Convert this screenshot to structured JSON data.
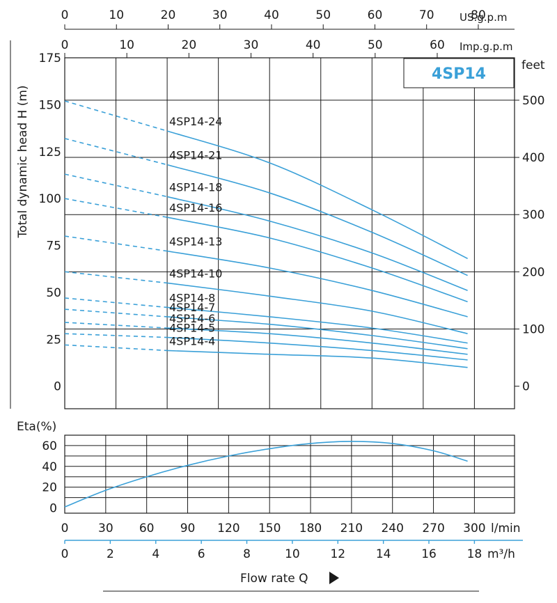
{
  "chart_data": [
    {
      "type": "line",
      "title": "4SP14",
      "ylabel": "Total dynamic head H (m)",
      "ylabel_right": "feet",
      "y_ticks": [
        0,
        25,
        50,
        75,
        100,
        125,
        150,
        175
      ],
      "y_right_ticks": [
        0,
        100,
        200,
        300,
        400,
        500
      ],
      "ylim": [
        -12,
        175
      ],
      "xlim_lmin": [
        0,
        320
      ],
      "top_axis_us": {
        "unit": "US.g.p.m",
        "ticks": [
          0,
          10,
          20,
          30,
          40,
          50,
          60,
          70,
          80
        ]
      },
      "top_axis_imp": {
        "unit": "Imp.g.p.m",
        "ticks": [
          0,
          10,
          20,
          30,
          40,
          50,
          60
        ]
      },
      "x_unit": "l/min",
      "solid_from_x": 75,
      "series": [
        {
          "name": "4SP14-24",
          "x": [
            0,
            75,
            150,
            225,
            295
          ],
          "y": [
            152,
            136,
            119,
            94,
            68
          ]
        },
        {
          "name": "4SP14-21",
          "x": [
            0,
            75,
            150,
            225,
            295
          ],
          "y": [
            132,
            118,
            103,
            82,
            59
          ]
        },
        {
          "name": "4SP14-18",
          "x": [
            0,
            75,
            150,
            225,
            295
          ],
          "y": [
            113,
            101,
            88,
            71,
            51
          ]
        },
        {
          "name": "4SP14-16",
          "x": [
            0,
            75,
            150,
            225,
            295
          ],
          "y": [
            100,
            90,
            79,
            63,
            45
          ]
        },
        {
          "name": "4SP14-13",
          "x": [
            0,
            75,
            150,
            225,
            295
          ],
          "y": [
            80,
            72,
            63,
            51,
            37
          ]
        },
        {
          "name": "4SP14-10",
          "x": [
            0,
            75,
            150,
            225,
            295
          ],
          "y": [
            61,
            55,
            48,
            40,
            28
          ]
        },
        {
          "name": "4SP14-8",
          "x": [
            0,
            75,
            150,
            225,
            295
          ],
          "y": [
            47,
            42,
            37,
            31,
            23
          ]
        },
        {
          "name": "4SP14-7",
          "x": [
            0,
            75,
            150,
            225,
            295
          ],
          "y": [
            41,
            37,
            33,
            27,
            20
          ]
        },
        {
          "name": "4SP14-6",
          "x": [
            0,
            75,
            150,
            225,
            295
          ],
          "y": [
            34,
            31,
            28,
            23,
            17
          ]
        },
        {
          "name": "4SP14-5",
          "x": [
            0,
            75,
            150,
            225,
            295
          ],
          "y": [
            28,
            26,
            23,
            19,
            14
          ]
        },
        {
          "name": "4SP14-4",
          "x": [
            0,
            75,
            150,
            225,
            295
          ],
          "y": [
            22,
            19,
            17,
            15,
            10
          ]
        }
      ]
    },
    {
      "type": "line",
      "ylabel": "Eta(%)",
      "y_ticks": [
        0,
        20,
        40,
        60
      ],
      "ylim": [
        -5,
        70
      ],
      "x_ticks_lmin": [
        0,
        30,
        60,
        90,
        120,
        150,
        180,
        210,
        240,
        270,
        300
      ],
      "x_unit_lmin": "l/min",
      "x_ticks_m3h": [
        0,
        2,
        4,
        6,
        8,
        10,
        12,
        14,
        16,
        18
      ],
      "x_unit_m3h": "m³/h",
      "xlabel": "Flow rate Q",
      "series": [
        {
          "x": [
            0,
            30,
            60,
            90,
            120,
            150,
            180,
            210,
            240,
            270,
            295
          ],
          "y": [
            1,
            17,
            30,
            41,
            50,
            57,
            62,
            64,
            62,
            55,
            45
          ]
        }
      ]
    }
  ]
}
